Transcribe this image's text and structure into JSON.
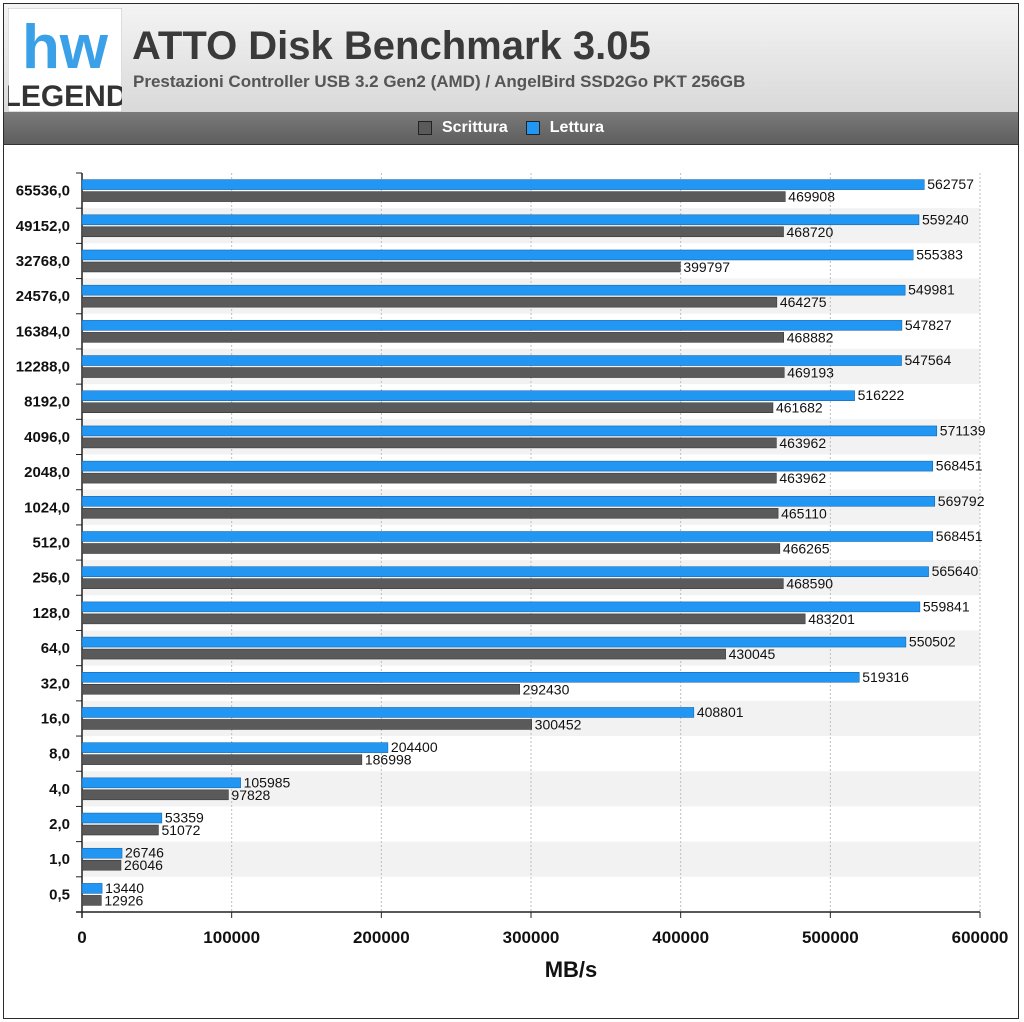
{
  "header": {
    "title": "ATTO Disk Benchmark 3.05",
    "subtitle": "Prestazioni Controller USB 3.2 Gen2 (AMD) / AngelBird SSD2Go PKT 256GB",
    "logo_text_top": "hw",
    "logo_text_bottom": "LEGEND"
  },
  "colors": {
    "scrittura": "#5a5a5a",
    "lettura": "#2196f3"
  },
  "chart_data": {
    "type": "bar",
    "orientation": "horizontal",
    "title": "ATTO Disk Benchmark 3.05",
    "subtitle": "Prestazioni Controller USB 3.2 Gen2 (AMD) / AngelBird SSD2Go PKT 256GB",
    "xlabel": "MB/s",
    "ylabel": "",
    "xlim": [
      0,
      600000
    ],
    "xticks": [
      "0",
      "100000",
      "200000",
      "300000",
      "400000",
      "500000",
      "600000"
    ],
    "grid": true,
    "legend_position": "top",
    "categories": [
      "65536,0",
      "49152,0",
      "32768,0",
      "24576,0",
      "16384,0",
      "12288,0",
      "8192,0",
      "4096,0",
      "2048,0",
      "1024,0",
      "512,0",
      "256,0",
      "128,0",
      "64,0",
      "32,0",
      "16,0",
      "8,0",
      "4,0",
      "2,0",
      "1,0",
      "0,5"
    ],
    "series": [
      {
        "name": "Scrittura",
        "values": [
          469908,
          468720,
          399797,
          464275,
          468882,
          469193,
          461682,
          463962,
          463962,
          465110,
          466265,
          468590,
          483201,
          430045,
          292430,
          300452,
          186998,
          97828,
          51072,
          26046,
          12926
        ]
      },
      {
        "name": "Lettura",
        "values": [
          562757,
          559240,
          555383,
          549981,
          547827,
          547564,
          516222,
          571139,
          568451,
          569792,
          568451,
          565640,
          559841,
          550502,
          519316,
          408801,
          204400,
          105985,
          53359,
          26746,
          13440
        ]
      }
    ]
  }
}
